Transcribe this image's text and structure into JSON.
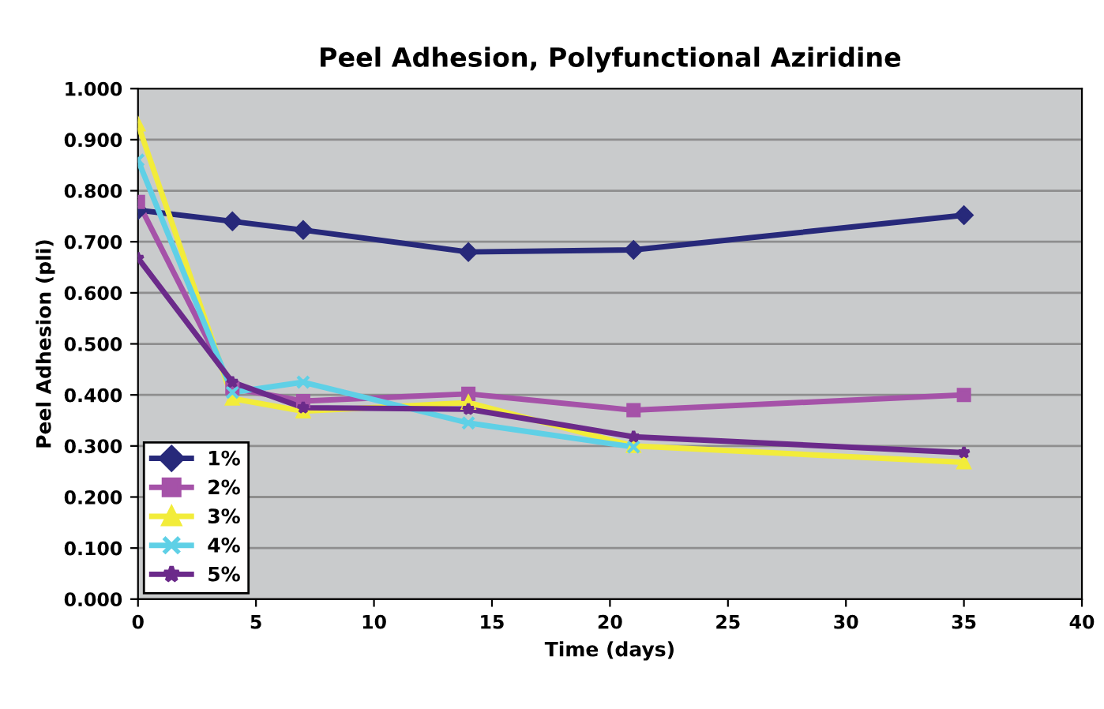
{
  "chart_data": {
    "type": "line",
    "title": "Peel Adhesion, Polyfunctional Aziridine",
    "xlabel": "Time (days)",
    "ylabel": "Peel Adhesion (pli)",
    "x": [
      0,
      4,
      7,
      14,
      21,
      35
    ],
    "series": [
      {
        "name": "1%",
        "color": "#27297a",
        "marker": "diamond",
        "values": [
          0.762,
          0.74,
          0.723,
          0.68,
          0.684,
          0.752
        ]
      },
      {
        "name": "2%",
        "color": "#a552a8",
        "marker": "square",
        "values": [
          0.778,
          0.413,
          0.388,
          0.402,
          0.37,
          0.4
        ]
      },
      {
        "name": "3%",
        "color": "#f2ec3a",
        "marker": "triangle",
        "values": [
          0.93,
          0.393,
          0.368,
          0.385,
          0.3,
          0.268
        ]
      },
      {
        "name": "4%",
        "color": "#5fd0e6",
        "marker": "cross",
        "values": [
          0.86,
          0.405,
          0.425,
          0.345,
          0.298,
          null
        ]
      },
      {
        "name": "5%",
        "color": "#6b2a8a",
        "marker": "star",
        "values": [
          0.668,
          0.425,
          0.375,
          0.372,
          0.318,
          0.287
        ]
      }
    ],
    "xlim": [
      0,
      40
    ],
    "xticks": [
      0,
      5,
      10,
      15,
      20,
      25,
      30,
      35,
      40
    ],
    "ylim": [
      0,
      1
    ],
    "yticks": [
      {
        "value": 0,
        "label": "0.000"
      },
      {
        "value": 0.1,
        "label": "0.100"
      },
      {
        "value": 0.2,
        "label": "0.200"
      },
      {
        "value": 0.3,
        "label": "0.300"
      },
      {
        "value": 0.4,
        "label": "0.400"
      },
      {
        "value": 0.5,
        "label": "0.500"
      },
      {
        "value": 0.6,
        "label": "0.600"
      },
      {
        "value": 0.7,
        "label": "0.700"
      },
      {
        "value": 0.8,
        "label": "0.800"
      },
      {
        "value": 0.9,
        "label": "0.900"
      },
      {
        "value": 1,
        "label": "1.000"
      }
    ],
    "grid": "y",
    "legend": "bottom left",
    "line_style": "solid"
  }
}
